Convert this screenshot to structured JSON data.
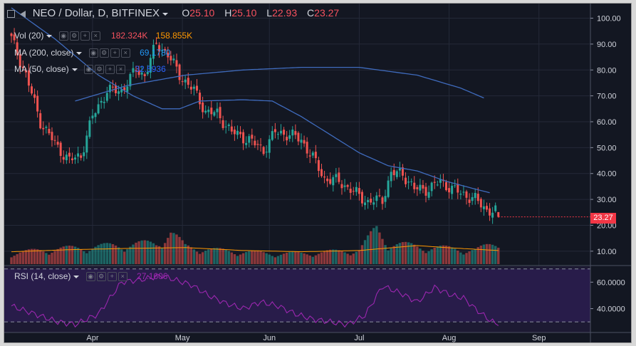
{
  "header": {
    "symbol_title": "NEO / Dollar, D, BITFINEX",
    "ohlc": [
      {
        "k": "O",
        "v": "25.10"
      },
      {
        "k": "H",
        "v": "25.10"
      },
      {
        "k": "L",
        "v": "22.93"
      },
      {
        "k": "C",
        "v": "23.27"
      }
    ]
  },
  "studies": [
    {
      "label": "Vol (20)",
      "values": [
        "182.324K",
        "158.855K"
      ],
      "colors": [
        "#f7525f",
        "#ff9800"
      ]
    },
    {
      "label": "MA (200, close)",
      "values": [
        "69.1780"
      ],
      "colors": [
        "#2196f3"
      ]
    },
    {
      "label": "MA (50, close)",
      "values": [
        "32.5936"
      ],
      "colors": [
        "#2962ff"
      ]
    }
  ],
  "rsi_header": {
    "label": "RSI (14, close)",
    "value": "27.1606",
    "color": "#9c27b0"
  },
  "price_tag": "23.27",
  "colors": {
    "up": "#26a69a",
    "down": "#ef5350",
    "ma200": "#3f6bbd",
    "ma50": "#3f6bbd",
    "vol_ma": "#ff9800",
    "rsi": "#9c27b0",
    "background": "#131722",
    "grid": "#242938"
  },
  "chart_data": [
    {
      "type": "candlestick",
      "title": "NEO / Dollar, D, BITFINEX",
      "x_tick_labels": [
        "Apr",
        "May",
        "Jun",
        "Jul",
        "Aug",
        "Sep"
      ],
      "y_tick_labels": [
        "100.00",
        "90.00",
        "80.00",
        "70.00",
        "60.00",
        "50.00",
        "40.00",
        "30.00",
        "20.00",
        "10.00"
      ],
      "ylim": [
        5,
        104
      ],
      "grid": true,
      "series": [
        {
          "name": "NEO / Dollar",
          "anchors_close": [
            [
              0,
              92
            ],
            [
              5,
              78
            ],
            [
              10,
              60
            ],
            [
              16,
              50
            ],
            [
              20,
              45
            ],
            [
              24,
              47
            ],
            [
              28,
              62
            ],
            [
              33,
              72
            ],
            [
              38,
              72
            ],
            [
              43,
              80
            ],
            [
              46,
              78
            ],
            [
              50,
              90
            ],
            [
              54,
              86
            ],
            [
              58,
              78
            ],
            [
              63,
              72
            ],
            [
              67,
              64
            ],
            [
              71,
              63
            ],
            [
              76,
              56
            ],
            [
              82,
              53
            ],
            [
              87,
              49
            ],
            [
              91,
              56
            ],
            [
              96,
              55
            ],
            [
              100,
              53
            ],
            [
              104,
              46
            ],
            [
              108,
              38
            ],
            [
              113,
              37
            ],
            [
              118,
              33
            ],
            [
              123,
              29
            ],
            [
              128,
              30
            ],
            [
              131,
              40
            ],
            [
              135,
              40
            ],
            [
              139,
              34
            ],
            [
              144,
              34
            ],
            [
              148,
              37
            ],
            [
              152,
              34
            ],
            [
              156,
              32
            ],
            [
              160,
              30
            ],
            [
              164,
              26
            ],
            [
              168,
              25
            ]
          ],
          "last_ohlc": {
            "o": 25.1,
            "h": 25.1,
            "l": 22.93,
            "c": 23.27
          }
        },
        {
          "name": "MA (200, close)",
          "anchors": [
            [
              22,
              68
            ],
            [
              40,
              74
            ],
            [
              60,
              78
            ],
            [
              80,
              80
            ],
            [
              100,
              81
            ],
            [
              120,
              81
            ],
            [
              140,
              78
            ],
            [
              155,
              73
            ],
            [
              163,
              69.18
            ]
          ]
        },
        {
          "name": "MA (50, close)",
          "anchors": [
            [
              0,
              104
            ],
            [
              15,
              92
            ],
            [
              30,
              78
            ],
            [
              42,
              70
            ],
            [
              52,
              65
            ],
            [
              58,
              65
            ],
            [
              65,
              68
            ],
            [
              80,
              68.5
            ],
            [
              90,
              68
            ],
            [
              100,
              62
            ],
            [
              110,
              55
            ],
            [
              120,
              48
            ],
            [
              130,
              43
            ],
            [
              140,
              41
            ],
            [
              150,
              37
            ],
            [
              160,
              34
            ],
            [
              165,
              32.59
            ]
          ]
        }
      ]
    },
    {
      "type": "bar",
      "title": "Vol (20)",
      "anchors": [
        [
          0,
          0.3
        ],
        [
          10,
          0.4
        ],
        [
          20,
          0.45
        ],
        [
          30,
          0.5
        ],
        [
          40,
          0.55
        ],
        [
          50,
          0.6
        ],
        [
          55,
          0.9
        ],
        [
          60,
          0.5
        ],
        [
          70,
          0.4
        ],
        [
          80,
          0.35
        ],
        [
          90,
          0.3
        ],
        [
          100,
          0.3
        ],
        [
          110,
          0.35
        ],
        [
          120,
          0.4
        ],
        [
          126,
          1.0
        ],
        [
          130,
          0.6
        ],
        [
          140,
          0.5
        ],
        [
          150,
          0.45
        ],
        [
          160,
          0.4
        ],
        [
          168,
          0.6
        ]
      ],
      "ma_anchors": [
        [
          0,
          0.3
        ],
        [
          20,
          0.35
        ],
        [
          40,
          0.38
        ],
        [
          60,
          0.4
        ],
        [
          80,
          0.33
        ],
        [
          100,
          0.3
        ],
        [
          120,
          0.33
        ],
        [
          140,
          0.45
        ],
        [
          150,
          0.4
        ],
        [
          168,
          0.33
        ]
      ],
      "last_values": [
        "182.324K",
        "158.855K"
      ]
    },
    {
      "type": "line",
      "title": "RSI (14, close)",
      "y_tick_labels": [
        "60.0000",
        "40.0000"
      ],
      "ylim": [
        22,
        72
      ],
      "series": [
        {
          "name": "RSI (14, close)",
          "anchors": [
            [
              0,
              42
            ],
            [
              8,
              36
            ],
            [
              16,
              30
            ],
            [
              22,
              28
            ],
            [
              30,
              36
            ],
            [
              38,
              60
            ],
            [
              45,
              62
            ],
            [
              52,
              65
            ],
            [
              56,
              62
            ],
            [
              62,
              58
            ],
            [
              68,
              50
            ],
            [
              74,
              44
            ],
            [
              80,
              40
            ],
            [
              86,
              45
            ],
            [
              92,
              42
            ],
            [
              98,
              36
            ],
            [
              104,
              32
            ],
            [
              110,
              30
            ],
            [
              116,
              28
            ],
            [
              122,
              35
            ],
            [
              128,
              57
            ],
            [
              134,
              52
            ],
            [
              140,
              45
            ],
            [
              146,
              56
            ],
            [
              152,
              50
            ],
            [
              156,
              48
            ],
            [
              160,
              40
            ],
            [
              164,
              33
            ],
            [
              168,
              27.16
            ]
          ]
        }
      ]
    }
  ]
}
